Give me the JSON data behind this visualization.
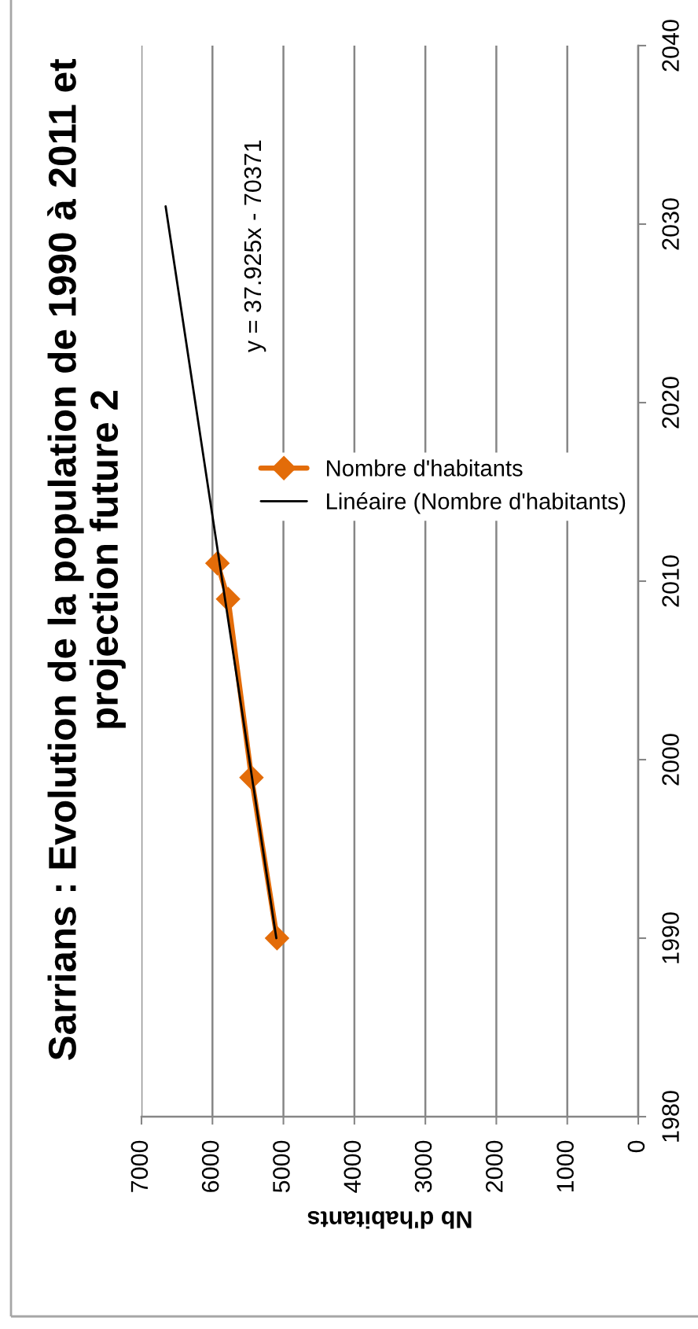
{
  "chart_data": {
    "type": "line",
    "title": "Sarrians : Evolution de la population de 1990 à 2011 et projection future 2",
    "xlabel": "Nb d'habitants",
    "xlim": [
      7000,
      0
    ],
    "xticks": [
      7000,
      6000,
      5000,
      4000,
      3000,
      2000,
      1000,
      0
    ],
    "ylim": [
      1980,
      2040
    ],
    "yticks": [
      1980,
      1990,
      2000,
      2010,
      2020,
      2030,
      2040
    ],
    "grid": "x",
    "legend": "top right",
    "series": [
      {
        "name": "Nombre d'habitants",
        "color": "#e36c09",
        "marker": "diamond",
        "x": [
          5090,
          5450,
          5780,
          5930
        ],
        "values": [
          1990,
          1999,
          2009,
          2011
        ]
      },
      {
        "name": "Linéaire (Nombre d'habitants)",
        "type": "line",
        "color": "#000000",
        "marker": "none",
        "x": [
          5100,
          6660
        ],
        "values": [
          1990,
          2031
        ]
      }
    ],
    "annotations": [
      "y = 37.925x - 70371"
    ]
  }
}
